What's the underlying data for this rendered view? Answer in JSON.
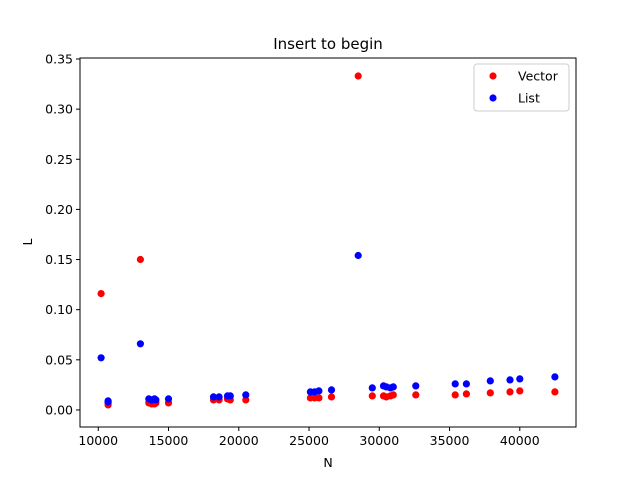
{
  "chart_data": {
    "type": "scatter",
    "title": "Insert to begin",
    "xlabel": "N",
    "ylabel": "L",
    "xlim": [
      8700,
      44000
    ],
    "ylim": [
      -0.017,
      0.351
    ],
    "xticks": [
      10000,
      15000,
      20000,
      25000,
      30000,
      35000,
      40000
    ],
    "xtick_labels": [
      "10000",
      "15000",
      "20000",
      "25000",
      "30000",
      "35000",
      "40000"
    ],
    "yticks": [
      0.0,
      0.05,
      0.1,
      0.15,
      0.2,
      0.25,
      0.3,
      0.35
    ],
    "ytick_labels": [
      "0.00",
      "0.05",
      "0.10",
      "0.15",
      "0.20",
      "0.25",
      "0.30",
      "0.35"
    ],
    "grid": false,
    "legend_position": "top-right",
    "series": [
      {
        "name": "Vector",
        "color": "#ff0000",
        "points": [
          [
            10200,
            0.116
          ],
          [
            10700,
            0.005
          ],
          [
            10700,
            0.007
          ],
          [
            13000,
            0.15
          ],
          [
            13600,
            0.007
          ],
          [
            13800,
            0.006
          ],
          [
            14000,
            0.006
          ],
          [
            14100,
            0.007
          ],
          [
            15000,
            0.007
          ],
          [
            18200,
            0.01
          ],
          [
            18600,
            0.01
          ],
          [
            19200,
            0.011
          ],
          [
            19400,
            0.01
          ],
          [
            20500,
            0.01
          ],
          [
            25100,
            0.012
          ],
          [
            25400,
            0.012
          ],
          [
            25700,
            0.012
          ],
          [
            26600,
            0.013
          ],
          [
            28500,
            0.333
          ],
          [
            29500,
            0.014
          ],
          [
            30300,
            0.014
          ],
          [
            30500,
            0.013
          ],
          [
            30800,
            0.014
          ],
          [
            31000,
            0.015
          ],
          [
            32600,
            0.015
          ],
          [
            35400,
            0.015
          ],
          [
            36200,
            0.016
          ],
          [
            37900,
            0.017
          ],
          [
            39300,
            0.018
          ],
          [
            40000,
            0.019
          ],
          [
            42500,
            0.018
          ]
        ]
      },
      {
        "name": "List",
        "color": "#0000ff",
        "points": [
          [
            10200,
            0.052
          ],
          [
            10700,
            0.008
          ],
          [
            10700,
            0.009
          ],
          [
            13000,
            0.066
          ],
          [
            13600,
            0.011
          ],
          [
            13800,
            0.01
          ],
          [
            14000,
            0.011
          ],
          [
            14100,
            0.01
          ],
          [
            15000,
            0.011
          ],
          [
            18200,
            0.013
          ],
          [
            18600,
            0.013
          ],
          [
            19200,
            0.014
          ],
          [
            19400,
            0.014
          ],
          [
            20500,
            0.015
          ],
          [
            25100,
            0.018
          ],
          [
            25400,
            0.018
          ],
          [
            25700,
            0.019
          ],
          [
            26600,
            0.02
          ],
          [
            28500,
            0.154
          ],
          [
            29500,
            0.022
          ],
          [
            30300,
            0.024
          ],
          [
            30500,
            0.023
          ],
          [
            30800,
            0.022
          ],
          [
            31000,
            0.023
          ],
          [
            32600,
            0.024
          ],
          [
            35400,
            0.026
          ],
          [
            36200,
            0.026
          ],
          [
            37900,
            0.029
          ],
          [
            39300,
            0.03
          ],
          [
            40000,
            0.031
          ],
          [
            42500,
            0.033
          ]
        ]
      }
    ]
  }
}
